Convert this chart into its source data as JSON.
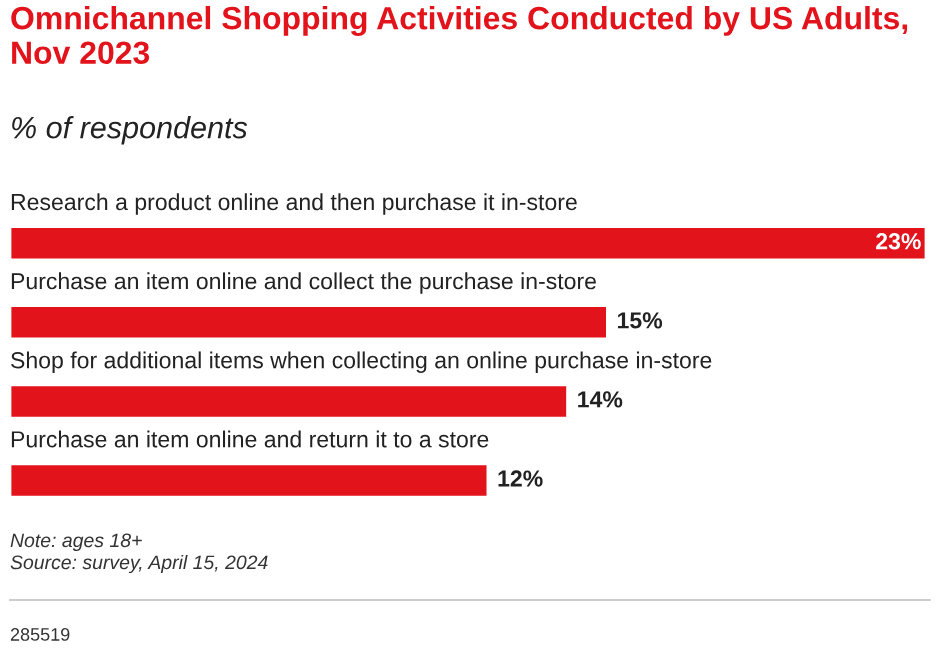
{
  "chart_data": {
    "type": "bar",
    "orientation": "horizontal",
    "title": "Omnichannel Shopping Activities Conducted by US Adults, Nov 2023",
    "subtitle": "% of respondents",
    "categories": [
      "Research a product online and then purchase it in-store",
      "Purchase an item online and collect the purchase in-store",
      "Shop for additional items when collecting an online purchase in-store",
      "Purchase an item online and return it to a store"
    ],
    "values": [
      23,
      15,
      14,
      12
    ],
    "color": "#e3131b",
    "value_labels": [
      "23%",
      "15%",
      "14%",
      "12%"
    ],
    "annotations": [
      "Note: ages 18+",
      "Source: survey, April 15, 2024",
      "285519"
    ]
  }
}
